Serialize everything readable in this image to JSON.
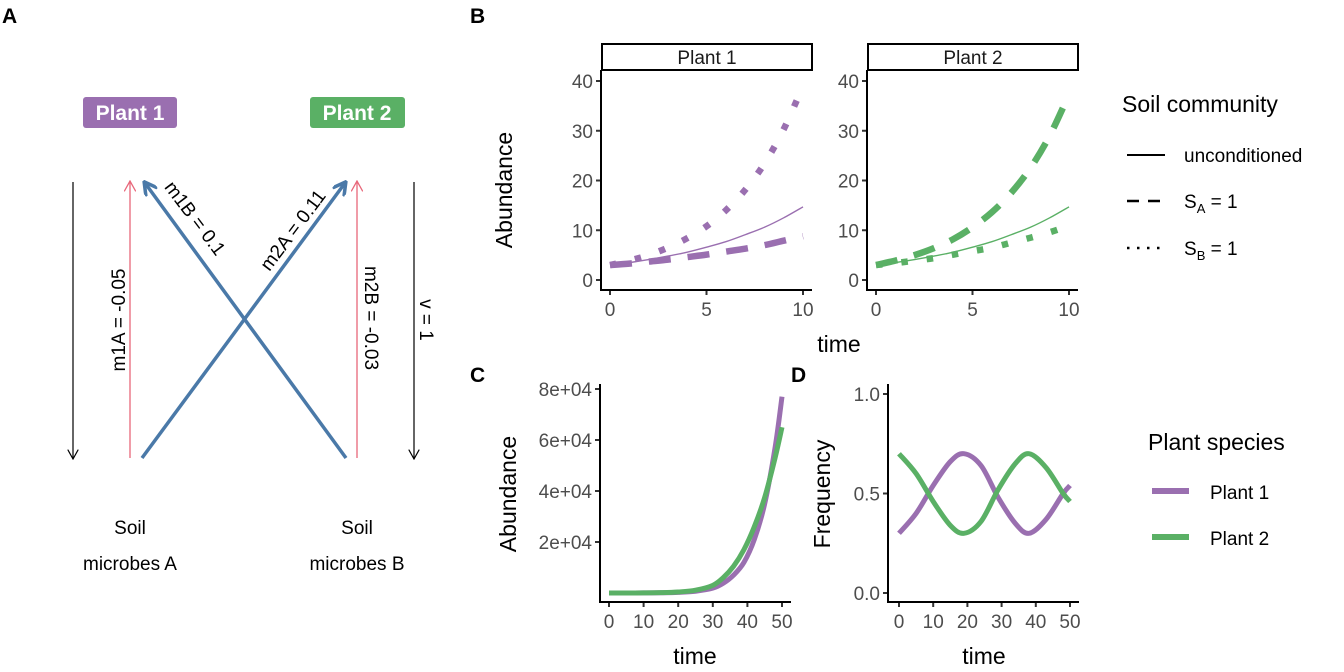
{
  "colors": {
    "plant1": "#9a6fb0",
    "plant2": "#5ab065",
    "negative_effect": "#e8677a",
    "microbe_effect": "#4a79a8",
    "decay": "#000000",
    "axis": "#000000",
    "tick_text": "#4d4d4d"
  },
  "panel_a": {
    "letter": "A",
    "plant_labels": [
      "Plant 1",
      "Plant 2"
    ],
    "soil_labels": [
      [
        "Soil",
        "microbes A"
      ],
      [
        "Soil",
        "microbes B"
      ]
    ],
    "edges": {
      "m1A": "m1A = -0.05",
      "m1B": "m1B = 0.1",
      "m2A": "m2A = 0.11",
      "m2B": "m2B = -0.03",
      "v": "v = 1"
    }
  },
  "chart_data": [
    {
      "panel": "B",
      "type": "line",
      "facets": [
        "Plant 1",
        "Plant 2"
      ],
      "xlabel": "time",
      "ylabel": "Abundance",
      "xlim": [
        0,
        10
      ],
      "ylim": [
        0,
        40
      ],
      "xticks": [
        0,
        5,
        10
      ],
      "yticks": [
        0,
        10,
        20,
        30,
        40
      ],
      "grid": false,
      "legend": {
        "title": "Soil community",
        "position": "right",
        "entries": [
          {
            "label": "unconditioned",
            "linetype": "solid"
          },
          {
            "label": "S",
            "sub": "A",
            "suffix": " = 1",
            "linetype": "dashed"
          },
          {
            "label": "S",
            "sub": "B",
            "suffix": " = 1",
            "linetype": "dotted"
          }
        ]
      },
      "x": [
        0,
        1,
        2,
        3,
        4,
        5,
        6,
        7,
        8,
        9,
        10
      ],
      "series": [
        {
          "facet": "Plant 1",
          "name": "unconditioned",
          "linetype": "solid",
          "values": [
            3.0,
            3.5,
            4.1,
            4.8,
            5.6,
            6.6,
            7.7,
            9.1,
            10.6,
            12.5,
            14.7
          ]
        },
        {
          "facet": "Plant 1",
          "name": "S_A = 1",
          "linetype": "dashed",
          "values": [
            3.0,
            3.3,
            3.7,
            4.1,
            4.6,
            5.1,
            5.7,
            6.3,
            7.0,
            7.9,
            8.8
          ]
        },
        {
          "facet": "Plant 1",
          "name": "S_B = 1",
          "linetype": "dotted",
          "values": [
            3.0,
            3.9,
            5.0,
            6.5,
            8.4,
            10.8,
            14.0,
            18.1,
            23.4,
            30.3,
            39.0
          ]
        },
        {
          "facet": "Plant 2",
          "name": "unconditioned",
          "linetype": "solid",
          "values": [
            3.0,
            3.5,
            4.1,
            4.8,
            5.6,
            6.6,
            7.7,
            9.1,
            10.6,
            12.5,
            14.7
          ]
        },
        {
          "facet": "Plant 2",
          "name": "S_A = 1",
          "linetype": "dashed",
          "values": [
            3.0,
            3.9,
            5.0,
            6.4,
            8.2,
            10.6,
            13.6,
            17.5,
            22.5,
            29.0,
            37.3
          ]
        },
        {
          "facet": "Plant 2",
          "name": "S_B = 1",
          "linetype": "dotted",
          "values": [
            3.0,
            3.4,
            3.9,
            4.4,
            5.1,
            5.8,
            6.5,
            7.5,
            8.5,
            9.6,
            10.9
          ]
        }
      ]
    },
    {
      "panel": "C",
      "type": "line",
      "xlabel": "time",
      "ylabel": "Abundance",
      "xlim": [
        0,
        50
      ],
      "ylim": [
        0,
        80000
      ],
      "xticks": [
        0,
        10,
        20,
        30,
        40,
        50
      ],
      "yticks": [
        20000,
        40000,
        60000,
        80000
      ],
      "ytick_labels": [
        "2e+04",
        "4e+04",
        "6e+04",
        "8e+04"
      ],
      "grid": false,
      "x": [
        0,
        5,
        10,
        15,
        20,
        25,
        30,
        33,
        36,
        39,
        42,
        45,
        48,
        50
      ],
      "series": [
        {
          "name": "Plant 1",
          "values": [
            3,
            10,
            30,
            90,
            260,
            700,
            1900,
            3800,
            7000,
            12000,
            21000,
            35000,
            57000,
            77000
          ]
        },
        {
          "name": "Plant 2",
          "values": [
            3,
            12,
            40,
            130,
            400,
            1100,
            3000,
            6000,
            10500,
            17000,
            26000,
            37500,
            53000,
            65000
          ]
        }
      ]
    },
    {
      "panel": "D",
      "type": "line",
      "xlabel": "time",
      "ylabel": "Frequency",
      "xlim": [
        0,
        50
      ],
      "ylim": [
        0,
        1
      ],
      "xticks": [
        0,
        10,
        20,
        30,
        40,
        50
      ],
      "yticks": [
        0.0,
        0.5,
        1.0
      ],
      "ytick_labels": [
        "0.0",
        "0.5",
        "1.0"
      ],
      "grid": false,
      "legend": {
        "title": "Plant species",
        "position": "right",
        "entries": [
          {
            "label": "Plant 1"
          },
          {
            "label": "Plant 2"
          }
        ]
      },
      "x": [
        0,
        5,
        10,
        15,
        19,
        24,
        29,
        34,
        38,
        43,
        48,
        50
      ],
      "series": [
        {
          "name": "Plant 1",
          "values": [
            0.3,
            0.4,
            0.54,
            0.66,
            0.7,
            0.64,
            0.48,
            0.35,
            0.3,
            0.37,
            0.5,
            0.54
          ]
        },
        {
          "name": "Plant 2",
          "values": [
            0.7,
            0.6,
            0.46,
            0.34,
            0.3,
            0.36,
            0.52,
            0.65,
            0.7,
            0.63,
            0.5,
            0.46
          ]
        }
      ]
    }
  ]
}
